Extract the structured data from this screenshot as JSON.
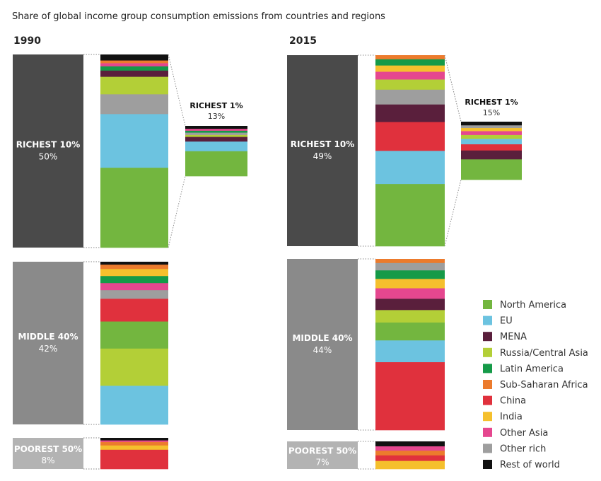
{
  "title": "Share of global income group consumption emissions from countries and regions",
  "legend": [
    {
      "name": "North America",
      "color": "#73b63f"
    },
    {
      "name": "EU",
      "color": "#6cc3e0"
    },
    {
      "name": "MENA",
      "color": "#5a1f3c"
    },
    {
      "name": "Russia/Central Asia",
      "color": "#b3cf37"
    },
    {
      "name": "Latin America",
      "color": "#159a48"
    },
    {
      "name": "Sub-Saharan Africa",
      "color": "#ec7b2d"
    },
    {
      "name": "China",
      "color": "#e0313d"
    },
    {
      "name": "India",
      "color": "#f5c02d"
    },
    {
      "name": "Other Asia",
      "color": "#e5478f"
    },
    {
      "name": "Other rich",
      "color": "#9e9e9e"
    },
    {
      "name": "Rest of world",
      "color": "#111111"
    }
  ],
  "group_colors": {
    "Richest 10%": "#4a4a4a",
    "Middle 40%": "#8a8a8a",
    "Poorest 50%": "#b3b3b3"
  },
  "chart_data": [
    {
      "type": "stacked-bar",
      "year": "1990",
      "groups": [
        {
          "label": "RICHEST 10%",
          "share": 50,
          "share_label": "50%",
          "segments": [
            {
              "region": "North America",
              "value": 20.6
            },
            {
              "region": "EU",
              "value": 13.8
            },
            {
              "region": "Other rich",
              "value": 5.1
            },
            {
              "region": "Russia/Central Asia",
              "value": 4.5
            },
            {
              "region": "MENA",
              "value": 1.6
            },
            {
              "region": "Latin America",
              "value": 1.1
            },
            {
              "region": "Other Asia",
              "value": 0.8
            },
            {
              "region": "Sub-Saharan Africa",
              "value": 0.7
            },
            {
              "region": "Rest of world",
              "value": 1.5
            }
          ]
        },
        {
          "label": "MIDDLE 40%",
          "share": 42,
          "share_label": "42%",
          "segments": [
            {
              "region": "EU",
              "value": 9.9
            },
            {
              "region": "Russia/Central Asia",
              "value": 9.5
            },
            {
              "region": "North America",
              "value": 6.9
            },
            {
              "region": "China",
              "value": 5.8
            },
            {
              "region": "Other rich",
              "value": 2.2
            },
            {
              "region": "Other Asia",
              "value": 1.8
            },
            {
              "region": "Latin America",
              "value": 1.8
            },
            {
              "region": "India",
              "value": 1.8
            },
            {
              "region": "Sub-Saharan Africa",
              "value": 1.1
            },
            {
              "region": "Rest of world",
              "value": 0.7
            }
          ]
        },
        {
          "label": "POOREST 50%",
          "share": 8,
          "share_label": "8%",
          "segments": [
            {
              "region": "China",
              "value": 5.0
            },
            {
              "region": "India",
              "value": 1.1
            },
            {
              "region": "Sub-Saharan Africa",
              "value": 0.9
            },
            {
              "region": "Other Asia",
              "value": 0.4
            },
            {
              "region": "Rest of world",
              "value": 0.6
            }
          ]
        }
      ],
      "richest1": {
        "label": "RICHEST 1%",
        "share": 13,
        "share_label": "13%",
        "segments": [
          {
            "region": "North America",
            "value": 6.5
          },
          {
            "region": "EU",
            "value": 2.5
          },
          {
            "region": "MENA",
            "value": 1.2
          },
          {
            "region": "Russia/Central Asia",
            "value": 0.5
          },
          {
            "region": "Other rich",
            "value": 0.6
          },
          {
            "region": "Latin America",
            "value": 0.5
          },
          {
            "region": "Other Asia",
            "value": 0.5
          },
          {
            "region": "Rest of world",
            "value": 0.7
          }
        ]
      }
    },
    {
      "type": "stacked-bar",
      "year": "2015",
      "groups": [
        {
          "label": "RICHEST 10%",
          "share": 49,
          "share_label": "49%",
          "segments": [
            {
              "region": "North America",
              "value": 16.0
            },
            {
              "region": "EU",
              "value": 8.5
            },
            {
              "region": "China",
              "value": 7.4
            },
            {
              "region": "MENA",
              "value": 4.5
            },
            {
              "region": "Other rich",
              "value": 3.8
            },
            {
              "region": "Russia/Central Asia",
              "value": 2.6
            },
            {
              "region": "Other Asia",
              "value": 2.0
            },
            {
              "region": "India",
              "value": 1.6
            },
            {
              "region": "Latin America",
              "value": 1.6
            },
            {
              "region": "Sub-Saharan Africa",
              "value": 1.0
            }
          ]
        },
        {
          "label": "MIDDLE 40%",
          "share": 44,
          "share_label": "44%",
          "segments": [
            {
              "region": "China",
              "value": 17.5
            },
            {
              "region": "EU",
              "value": 5.6
            },
            {
              "region": "North America",
              "value": 4.6
            },
            {
              "region": "Russia/Central Asia",
              "value": 3.2
            },
            {
              "region": "MENA",
              "value": 2.9
            },
            {
              "region": "Other Asia",
              "value": 2.7
            },
            {
              "region": "India",
              "value": 2.4
            },
            {
              "region": "Latin America",
              "value": 2.2
            },
            {
              "region": "Other rich",
              "value": 1.9
            },
            {
              "region": "Sub-Saharan Africa",
              "value": 1.0
            }
          ]
        },
        {
          "label": "POOREST 50%",
          "share": 7,
          "share_label": "7%",
          "segments": [
            {
              "region": "India",
              "value": 2.1
            },
            {
              "region": "China",
              "value": 1.4
            },
            {
              "region": "Sub-Saharan Africa",
              "value": 1.2
            },
            {
              "region": "Other Asia",
              "value": 1.1
            },
            {
              "region": "Rest of world",
              "value": 1.2
            }
          ]
        }
      ],
      "richest1": {
        "label": "RICHEST 1%",
        "share": 15,
        "share_label": "15%",
        "segments": [
          {
            "region": "North America",
            "value": 5.3
          },
          {
            "region": "MENA",
            "value": 2.3
          },
          {
            "region": "China",
            "value": 1.6
          },
          {
            "region": "EU",
            "value": 1.4
          },
          {
            "region": "Russia/Central Asia",
            "value": 1.0
          },
          {
            "region": "Other Asia",
            "value": 1.0
          },
          {
            "region": "India",
            "value": 0.8
          },
          {
            "region": "Other rich",
            "value": 0.7
          },
          {
            "region": "Rest of world",
            "value": 0.9
          }
        ]
      }
    }
  ]
}
